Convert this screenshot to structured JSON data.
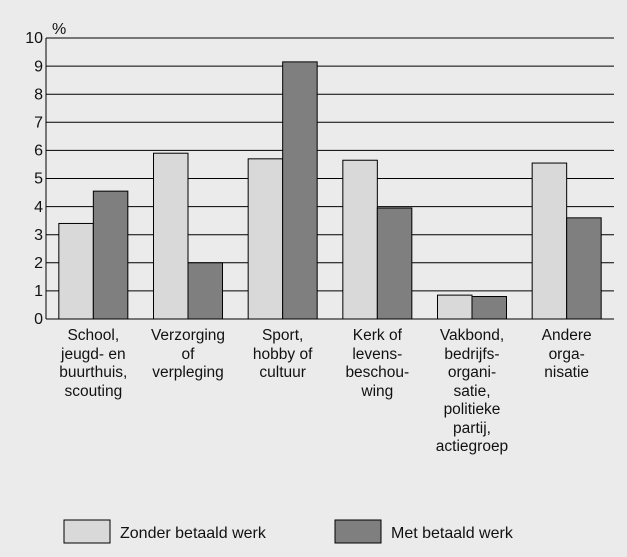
{
  "chart_data": {
    "type": "bar",
    "y_label": "%",
    "categories": [
      "School,\njeugd- en\nbuurthuis,\nscouting",
      "Verzorging\nof\nverpleging",
      "Sport,\nhobby of\ncultuur",
      "Kerk of\nlevens-\nbeschou-\nwing",
      "Vakbond,\nbedrijfs-\norgani-\nsatie,\npolitieke\npartij,\nactiegroep",
      "Andere\norga-\nnisatie"
    ],
    "series": [
      {
        "name": "Zonder betaald werk",
        "color": "#d9d9d9",
        "values": [
          3.4,
          5.9,
          5.7,
          5.65,
          0.85,
          5.55
        ]
      },
      {
        "name": "Met betaald werk",
        "color": "#7f7f7f",
        "values": [
          4.55,
          2.0,
          9.15,
          3.95,
          0.8,
          3.6
        ]
      }
    ],
    "ylim": [
      0,
      10
    ],
    "yticks": [
      0,
      1,
      2,
      3,
      4,
      5,
      6,
      7,
      8,
      9,
      10
    ],
    "grid": true,
    "legend": "bottom"
  }
}
